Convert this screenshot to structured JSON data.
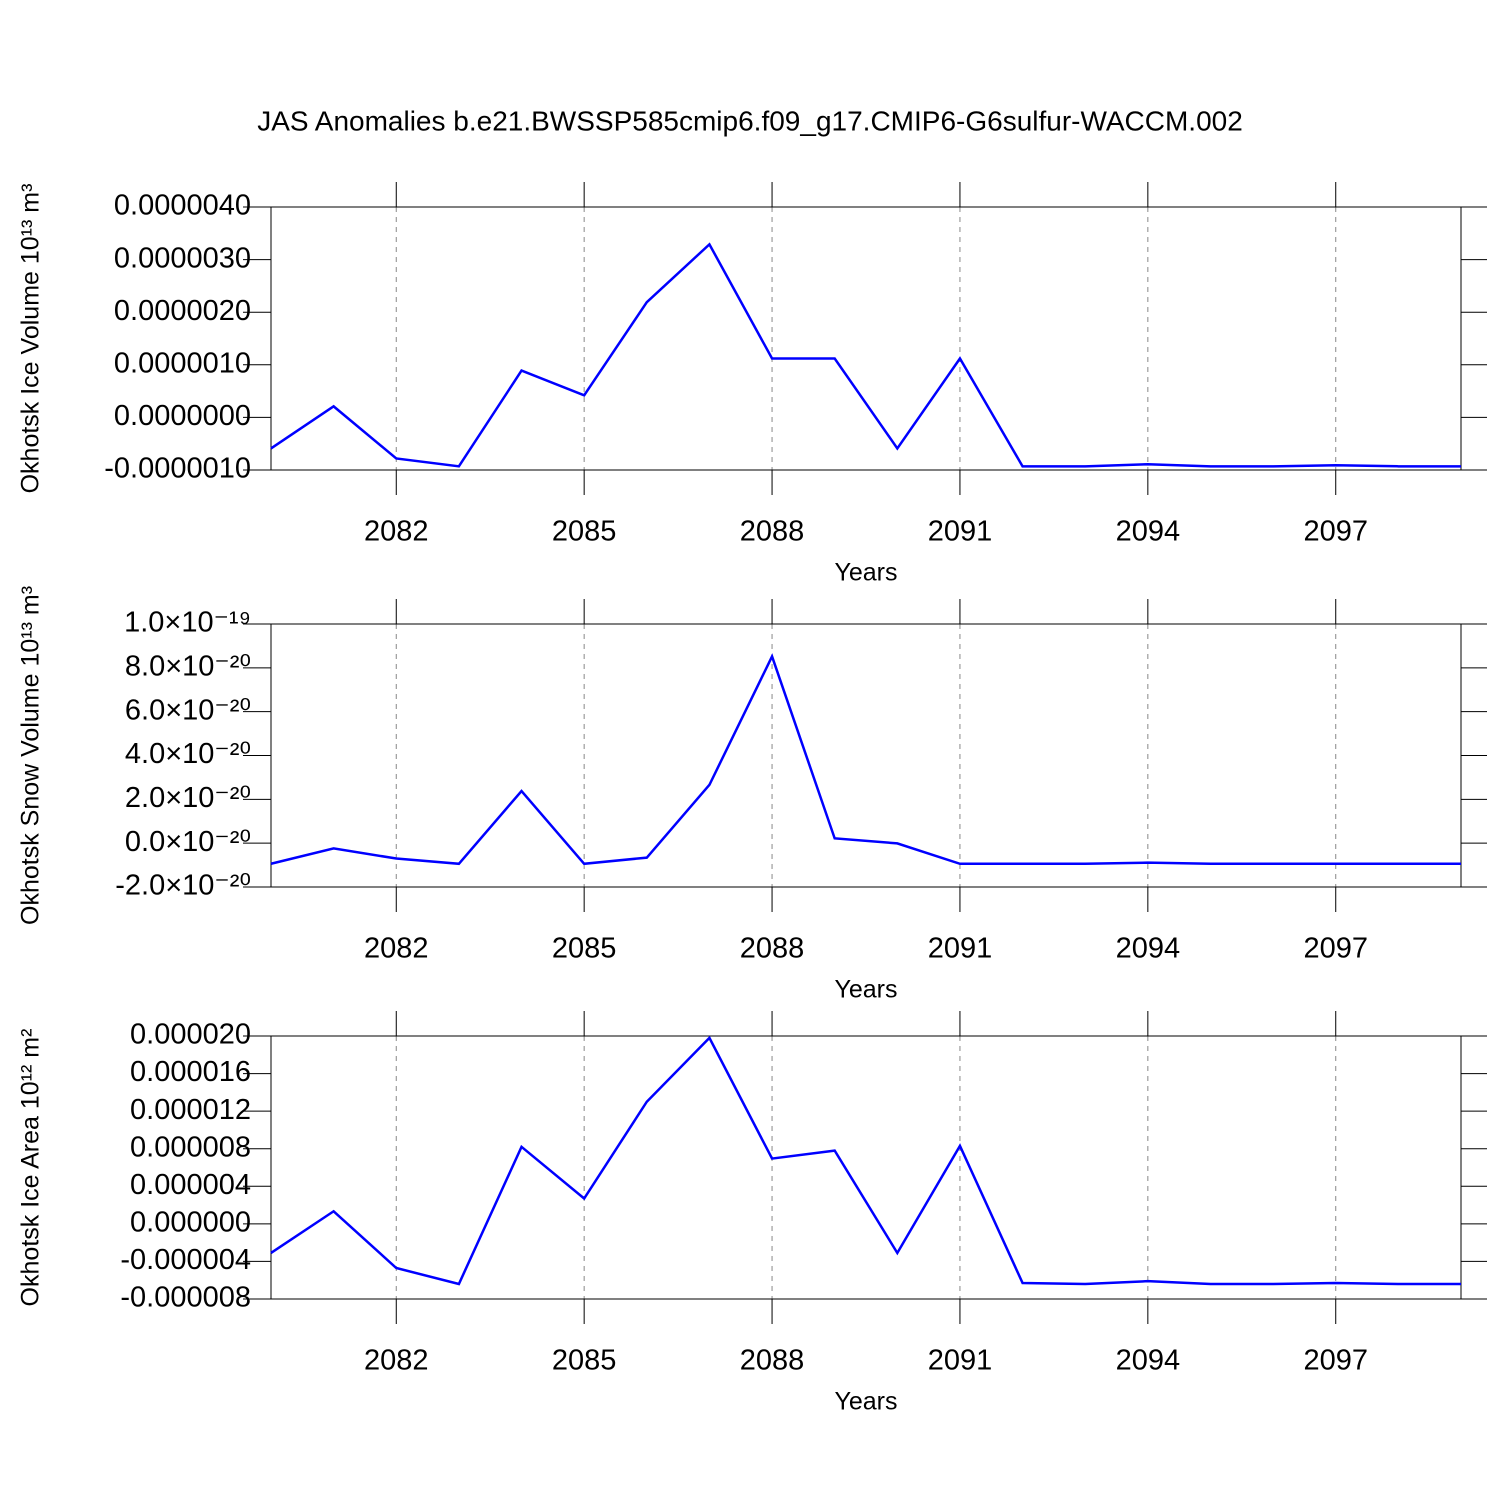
{
  "chart_data": [
    {
      "type": "line",
      "title": "JAS Anomalies b.e21.BWSSP585cmip6.f09_g17.CMIP6-G6sulfur-WACCM.002",
      "xlabel": "Years",
      "ylabel": "Okhotsk Ice Volume 10¹³ m³",
      "x": [
        2080,
        2081,
        2082,
        2083,
        2084,
        2085,
        2086,
        2087,
        2088,
        2089,
        2090,
        2091,
        2092,
        2093,
        2094,
        2095,
        2096,
        2097,
        2098,
        2099
      ],
      "values": [
        -5.9e-07,
        2.1e-07,
        -7.8e-07,
        -9.3e-07,
        8.9e-07,
        4.2e-07,
        2.19e-06,
        3.29e-06,
        1.12e-06,
        1.12e-06,
        -5.9e-07,
        1.12e-06,
        -9.3e-07,
        -9.3e-07,
        -8.9e-07,
        -9.3e-07,
        -9.3e-07,
        -9.1e-07,
        -9.3e-07,
        -9.3e-07
      ],
      "color": "#0000ff",
      "xlim": [
        2080,
        2099
      ],
      "xticks": [
        2082,
        2085,
        2088,
        2091,
        2094,
        2097
      ],
      "ylim": [
        -1e-06,
        4e-06
      ],
      "yticks": [
        {
          "value": -1e-06,
          "label": "-0.0000010"
        },
        {
          "value": 0,
          "label": "0.0000000"
        },
        {
          "value": 1e-06,
          "label": "0.0000010"
        },
        {
          "value": 2e-06,
          "label": "0.0000020"
        },
        {
          "value": 3e-06,
          "label": "0.0000030"
        },
        {
          "value": 4e-06,
          "label": "0.0000040"
        }
      ],
      "grid": "x"
    },
    {
      "type": "line",
      "xlabel": "Years",
      "ylabel": "Okhotsk Snow Volume 10¹³ m³",
      "x": [
        2080,
        2081,
        2082,
        2083,
        2084,
        2085,
        2086,
        2087,
        2088,
        2089,
        2090,
        2091,
        2092,
        2093,
        2094,
        2095,
        2096,
        2097,
        2098,
        2099
      ],
      "values": [
        -9.4e-21,
        -2.4e-21,
        -7e-21,
        -9.4e-21,
        2.38e-20,
        -9.4e-21,
        -6.6e-21,
        2.66e-20,
        8.52e-20,
        2.2e-21,
        -1e-22,
        -9.4e-21,
        -9.4e-21,
        -9.4e-21,
        -8.9e-21,
        -9.4e-21,
        -9.4e-21,
        -9.4e-21,
        -9.4e-21,
        -9.4e-21
      ],
      "color": "#0000ff",
      "xlim": [
        2080,
        2099
      ],
      "xticks": [
        2082,
        2085,
        2088,
        2091,
        2094,
        2097
      ],
      "ylim": [
        -2e-20,
        1e-19
      ],
      "yticks": [
        {
          "value": -2e-20,
          "label": "-2.0×10⁻²⁰"
        },
        {
          "value": 0,
          "label": "0.0×10⁻²⁰"
        },
        {
          "value": 2e-20,
          "label": "2.0×10⁻²⁰"
        },
        {
          "value": 4e-20,
          "label": "4.0×10⁻²⁰"
        },
        {
          "value": 6e-20,
          "label": "6.0×10⁻²⁰"
        },
        {
          "value": 8e-20,
          "label": "8.0×10⁻²⁰"
        },
        {
          "value": 1e-19,
          "label": "1.0×10⁻¹⁹"
        }
      ],
      "grid": "x"
    },
    {
      "type": "line",
      "xlabel": "Years",
      "ylabel": "Okhotsk Ice Area 10¹² m²",
      "x": [
        2080,
        2081,
        2082,
        2083,
        2084,
        2085,
        2086,
        2087,
        2088,
        2089,
        2090,
        2091,
        2092,
        2093,
        2094,
        2095,
        2096,
        2097,
        2098,
        2099
      ],
      "values": [
        -3.1e-06,
        1.34e-06,
        -4.7e-06,
        -6.4e-06,
        8.2e-06,
        2.7e-06,
        1.3e-05,
        1.98e-05,
        6.95e-06,
        7.8e-06,
        -3.1e-06,
        8.3e-06,
        -6.3e-06,
        -6.4e-06,
        -6.1e-06,
        -6.4e-06,
        -6.4e-06,
        -6.3e-06,
        -6.4e-06,
        -6.4e-06
      ],
      "color": "#0000ff",
      "xlim": [
        2080,
        2099
      ],
      "xticks": [
        2082,
        2085,
        2088,
        2091,
        2094,
        2097
      ],
      "ylim": [
        -8e-06,
        2e-05
      ],
      "yticks": [
        {
          "value": -8e-06,
          "label": "-0.000008"
        },
        {
          "value": -4e-06,
          "label": "-0.000004"
        },
        {
          "value": 0,
          "label": "0.000000"
        },
        {
          "value": 4e-06,
          "label": "0.000004"
        },
        {
          "value": 8e-06,
          "label": "0.000008"
        },
        {
          "value": 1.2e-05,
          "label": "0.000012"
        },
        {
          "value": 1.6e-05,
          "label": "0.000016"
        },
        {
          "value": 2e-05,
          "label": "0.000020"
        }
      ],
      "grid": "x"
    }
  ]
}
